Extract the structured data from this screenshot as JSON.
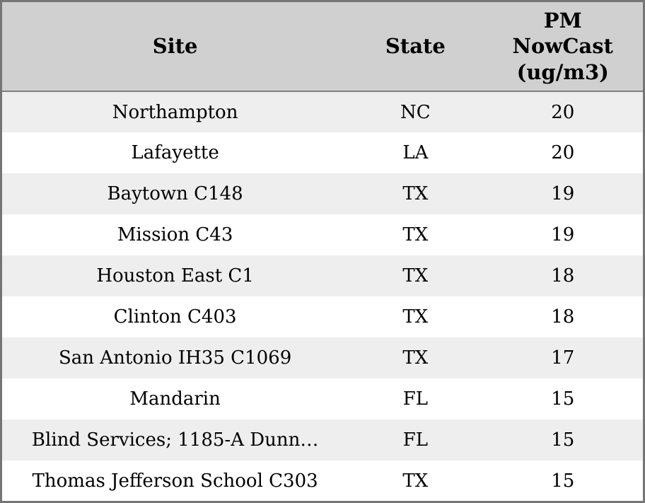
{
  "chart_data": {
    "type": "table",
    "columns": [
      "Site",
      "State",
      "PM NowCast (ug/m3)"
    ],
    "rows": [
      [
        "Northampton",
        "NC",
        20
      ],
      [
        "Lafayette",
        "LA",
        20
      ],
      [
        "Baytown C148",
        "TX",
        19
      ],
      [
        "Mission C43",
        "TX",
        19
      ],
      [
        "Houston East C1",
        "TX",
        18
      ],
      [
        "Clinton C403",
        "TX",
        18
      ],
      [
        "San Antonio IH35 C1069",
        "TX",
        17
      ],
      [
        "Mandarin",
        "FL",
        15
      ],
      [
        "Blind Services; 1185-A Dunn…",
        "FL",
        15
      ],
      [
        "Thomas Jefferson School C303",
        "TX",
        15
      ]
    ],
    "title": "",
    "legend": "none",
    "grid": "off"
  },
  "header": {
    "site_label": "Site",
    "state_label": "State",
    "pm_label_full": "PM NowCast (ug/m3)",
    "pm_lines": [
      "PM",
      "NowCast",
      "(ug/m3)"
    ]
  },
  "style": {
    "header_bg": "#d0d0d0",
    "stripe_bg": "#eeeeee",
    "row_bg": "#ffffff",
    "frame_border": "#757575",
    "header_rule": "#808080",
    "text_color": "#000000"
  }
}
